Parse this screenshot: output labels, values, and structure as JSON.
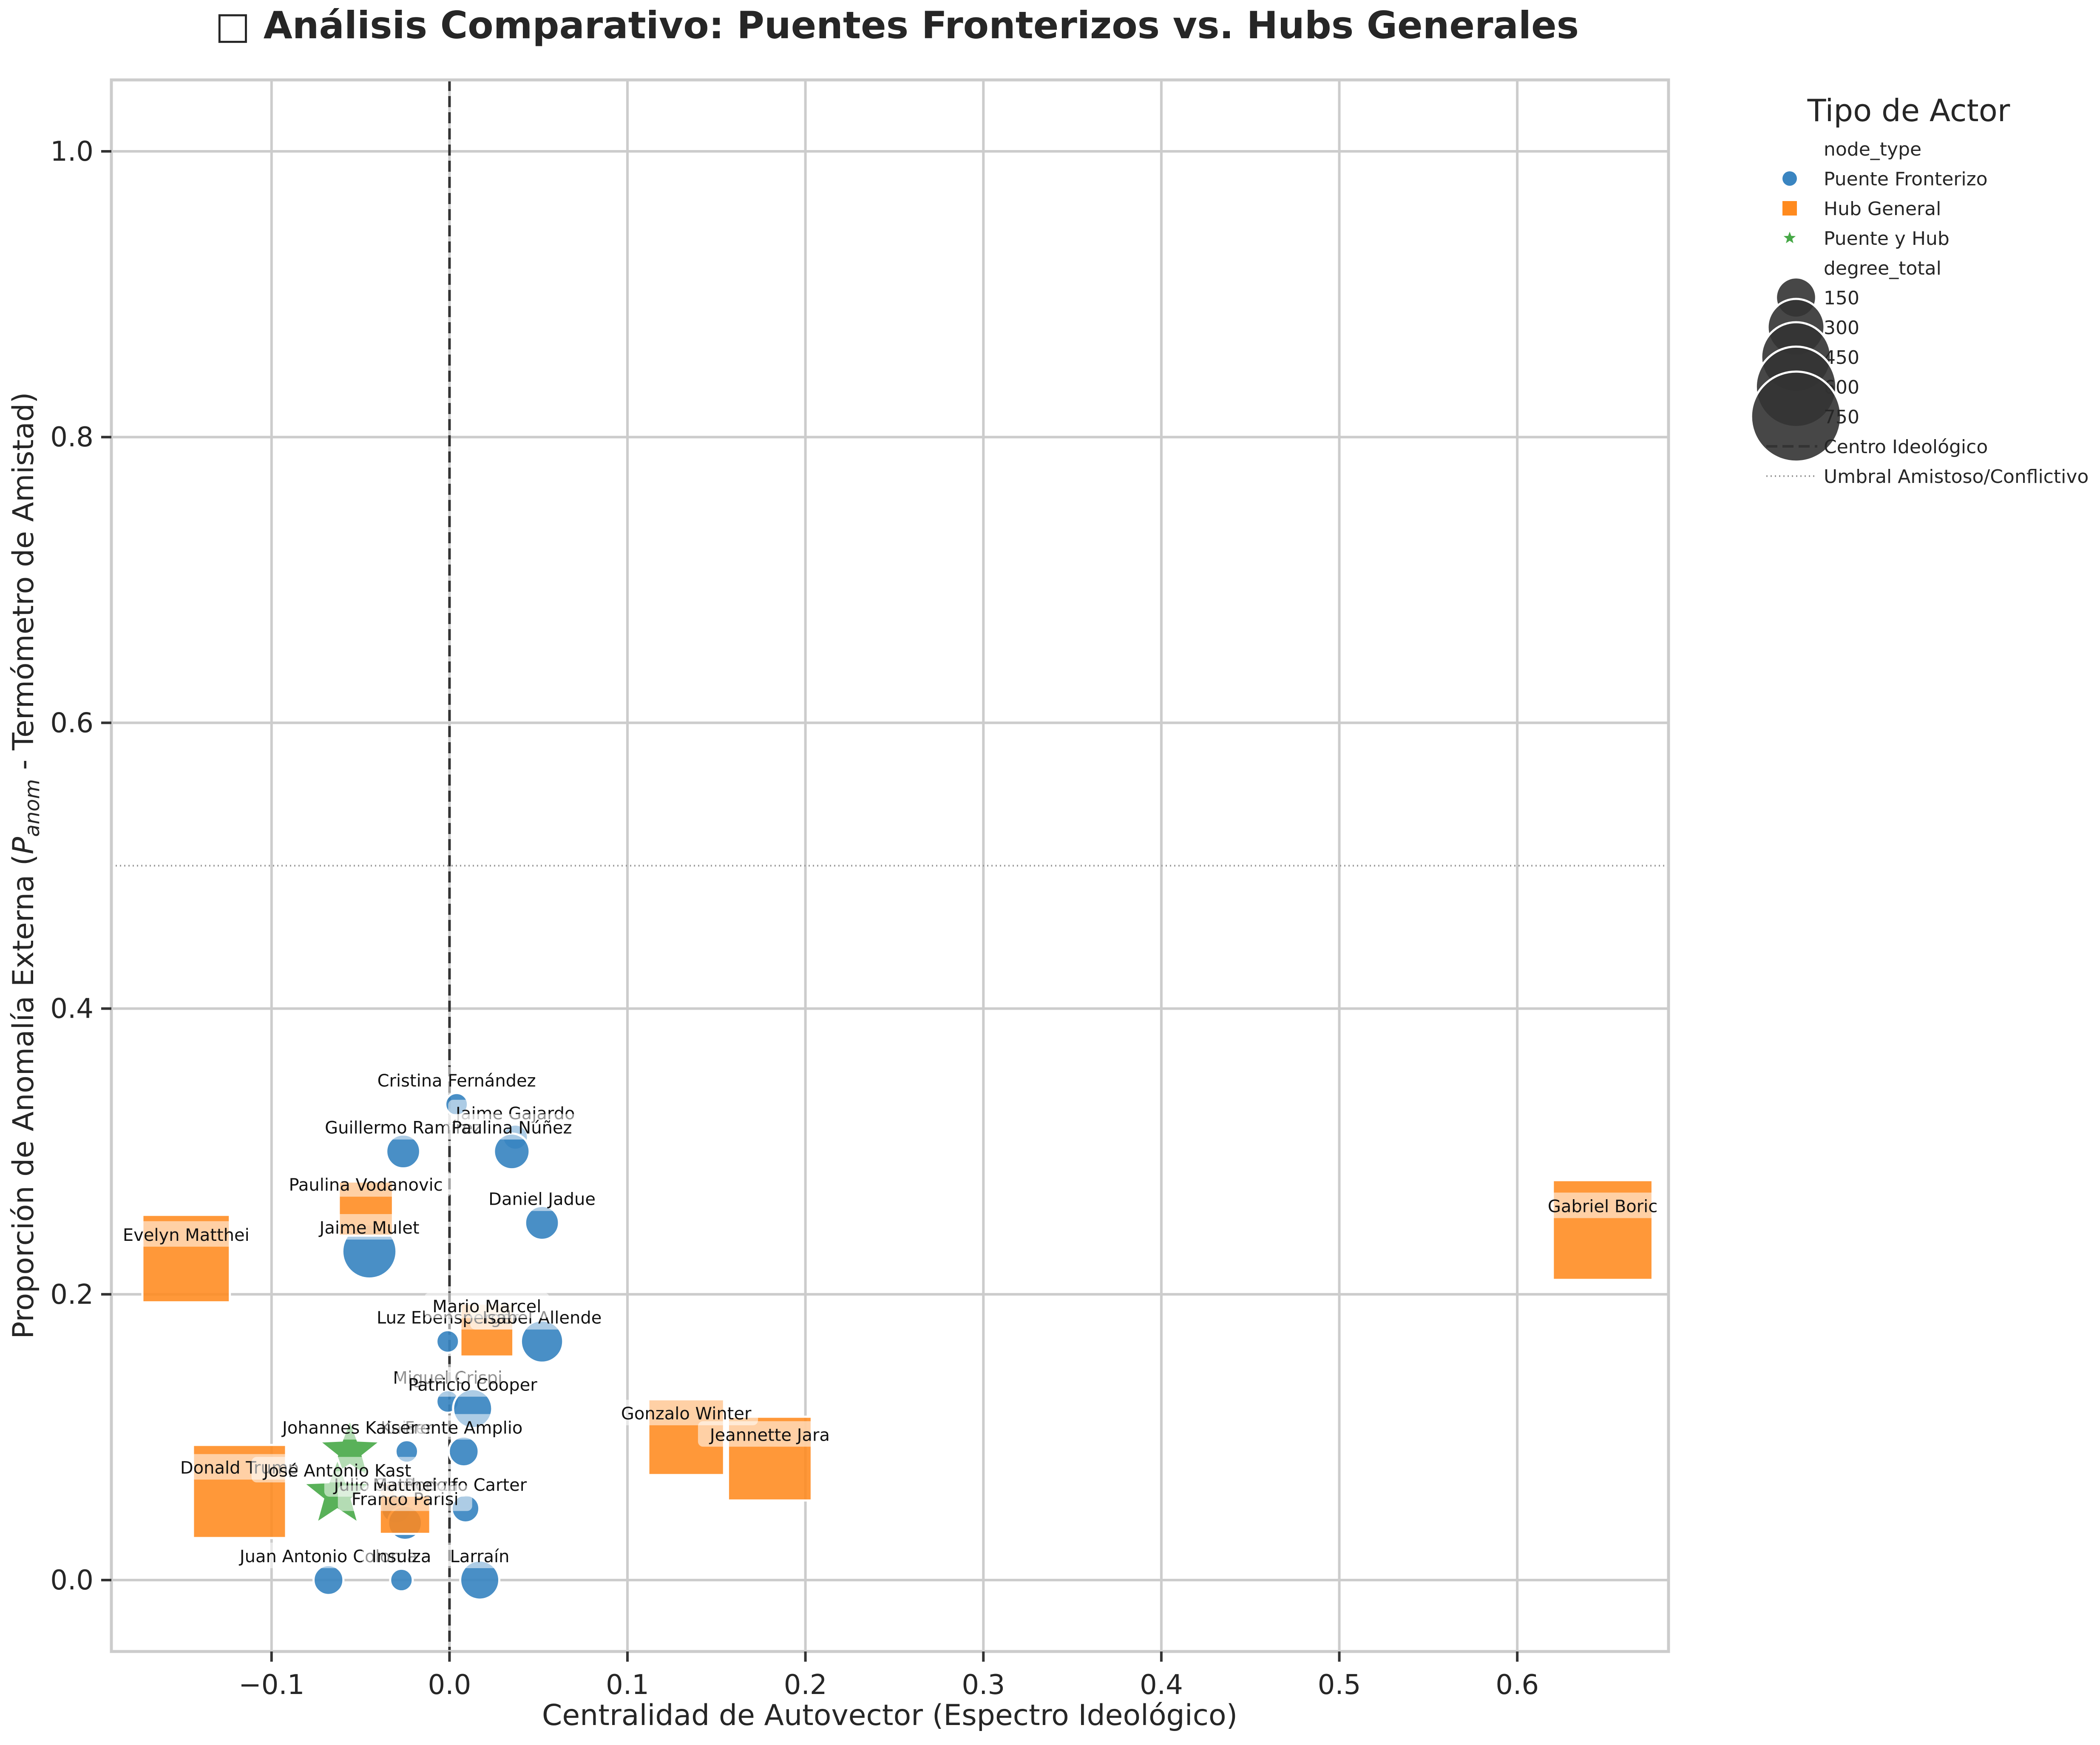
{
  "chart_data": {
    "type": "scatter",
    "title": "□ Análisis Comparativo: Puentes Fronterizos vs. Hubs Generales",
    "xlabel": "Centralidad de Autovector (Espectro Ideológico)",
    "ylabel_main": "Proporción de Anomalía Externa (",
    "ylabel_sym": "P",
    "ylabel_sub": "anom",
    "ylabel_rest": " - Termómetro de Amistad)",
    "xlim": [
      -0.19,
      0.685
    ],
    "ylim": [
      -0.05,
      1.05
    ],
    "xticks": [
      -0.1,
      0.0,
      0.1,
      0.2,
      0.3,
      0.4,
      0.5,
      0.6
    ],
    "xtick_labels": [
      "−0.1",
      "0.0",
      "0.1",
      "0.2",
      "0.3",
      "0.4",
      "0.5",
      "0.6"
    ],
    "yticks": [
      0.0,
      0.2,
      0.4,
      0.6,
      0.8,
      1.0
    ],
    "ytick_labels": [
      "0.0",
      "0.2",
      "0.4",
      "0.6",
      "0.8",
      "1.0"
    ],
    "grid": true,
    "center_line_x": 0.0,
    "threshold_y": 0.5,
    "colors": {
      "puente": "#3a85c1",
      "hub": "#ff8a1e",
      "both": "#47a847",
      "label_box": "#ffffff"
    },
    "legend": {
      "title": "Tipo de Actor",
      "placement": "outside-right",
      "items": [
        {
          "kind": "header",
          "label": "node_type"
        },
        {
          "kind": "circle",
          "label": "Puente Fronterizo"
        },
        {
          "kind": "square",
          "label": "Hub General"
        },
        {
          "kind": "star",
          "label": "Puente y Hub"
        },
        {
          "kind": "header",
          "label": "degree_total"
        },
        {
          "kind": "size",
          "label": "150",
          "value": 150
        },
        {
          "kind": "size",
          "label": "300",
          "value": 300
        },
        {
          "kind": "size",
          "label": "450",
          "value": 450
        },
        {
          "kind": "size",
          "label": "600",
          "value": 600
        },
        {
          "kind": "size",
          "label": "750",
          "value": 750
        },
        {
          "kind": "dashed",
          "label": "Centro Ideológico"
        },
        {
          "kind": "dotted",
          "label": "Umbral Amistoso/Conflictivo"
        }
      ]
    },
    "series": [
      {
        "name": "Puente Fronterizo",
        "marker": "circle",
        "points": [
          {
            "label": "Cristina Fernández",
            "x": 0.004,
            "y": 0.333,
            "degree": 40
          },
          {
            "label": "Jaime Gajardo",
            "x": 0.037,
            "y": 0.31,
            "degree": 50
          },
          {
            "label": "Guillermo Ramírez",
            "x": -0.026,
            "y": 0.3,
            "degree": 90
          },
          {
            "label": "Paulina Núñez",
            "x": 0.035,
            "y": 0.3,
            "degree": 100
          },
          {
            "label": "Daniel Jadue",
            "x": 0.052,
            "y": 0.25,
            "degree": 90
          },
          {
            "label": "Jaime Mulet",
            "x": -0.045,
            "y": 0.23,
            "degree": 230
          },
          {
            "label": "Luz Ebensperger",
            "x": -0.001,
            "y": 0.167,
            "degree": 40
          },
          {
            "label": "Isabel Allende",
            "x": 0.052,
            "y": 0.167,
            "degree": 140
          },
          {
            "label": "Miguel Crispi",
            "x": -0.001,
            "y": 0.125,
            "degree": 40
          },
          {
            "label": "Patricio Cooper",
            "x": 0.013,
            "y": 0.12,
            "degree": 120
          },
          {
            "label": "Kaiser",
            "x": -0.024,
            "y": 0.09,
            "degree": 40
          },
          {
            "label": "Frente Amplio",
            "x": 0.008,
            "y": 0.09,
            "degree": 70
          },
          {
            "label": "Julio Sanhueza",
            "x": -0.03,
            "y": 0.05,
            "degree": 70
          },
          {
            "label": "Rodolfo Carter",
            "x": 0.009,
            "y": 0.05,
            "degree": 60
          },
          {
            "label": "Franco Parisi",
            "x": -0.025,
            "y": 0.04,
            "degree": 90
          },
          {
            "label": "Juan Antonio Coloma",
            "x": -0.068,
            "y": 0.0,
            "degree": 70
          },
          {
            "label": "Insulza",
            "x": -0.027,
            "y": 0.0,
            "degree": 40
          },
          {
            "label": "Larraín",
            "x": 0.017,
            "y": 0.0,
            "degree": 120
          }
        ]
      },
      {
        "name": "Hub General",
        "marker": "square",
        "points": [
          {
            "label": "Evelyn Matthei",
            "x": -0.148,
            "y": 0.225,
            "degree": 600
          },
          {
            "label": "Paulina Vodanovic",
            "x": -0.047,
            "y": 0.26,
            "degree": 230
          },
          {
            "label": "Mario Marcel",
            "x": 0.021,
            "y": 0.175,
            "degree": 220
          },
          {
            "label": "Gonzalo Winter",
            "x": 0.133,
            "y": 0.1,
            "degree": 450
          },
          {
            "label": "Jeannette Jara",
            "x": 0.18,
            "y": 0.085,
            "degree": 550
          },
          {
            "label": "Donald Trump",
            "x": -0.118,
            "y": 0.062,
            "degree": 680
          },
          {
            "label": "Matthei",
            "x": -0.025,
            "y": 0.05,
            "degree": 200
          },
          {
            "label": "Gabriel Boric",
            "x": 0.648,
            "y": 0.245,
            "degree": 780
          }
        ]
      },
      {
        "name": "Puente y Hub",
        "marker": "star",
        "points": [
          {
            "label": "Johannes Kaiser",
            "x": -0.056,
            "y": 0.09,
            "degree": 210
          },
          {
            "label": "José Antonio Kast",
            "x": -0.063,
            "y": 0.06,
            "degree": 260
          }
        ]
      }
    ]
  }
}
